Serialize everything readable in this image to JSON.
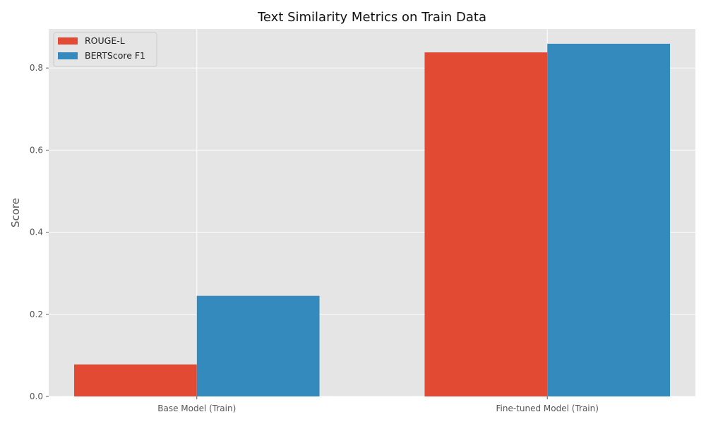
{
  "chart_data": {
    "type": "bar",
    "title": "Text Similarity Metrics on Train Data",
    "xlabel": "",
    "ylabel": "Score",
    "categories": [
      "Base Model (Train)",
      "Fine-tuned Model (Train)"
    ],
    "series": [
      {
        "name": "ROUGE-L",
        "color": "#E24A33",
        "values": [
          0.078,
          0.838
        ]
      },
      {
        "name": "BERTScore F1",
        "color": "#348ABD",
        "values": [
          0.245,
          0.859
        ]
      }
    ],
    "ylim": [
      0,
      0.895
    ],
    "yticks": [
      0.0,
      0.2,
      0.4,
      0.6,
      0.8
    ],
    "ytick_labels": [
      "0.0",
      "0.2",
      "0.4",
      "0.6",
      "0.8"
    ],
    "grid": true,
    "legend_position": "top-left",
    "style": {
      "plot_background": "#E5E5E5",
      "grid_color": "#FFFFFF"
    }
  }
}
